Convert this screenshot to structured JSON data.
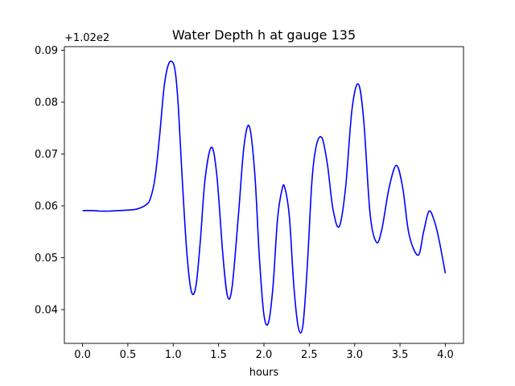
{
  "chart_data": {
    "type": "line",
    "title": "Water Depth h at gauge 135",
    "xlabel": "hours",
    "ylabel": "",
    "y_offset_label": "+1.02e2",
    "y_offset": 102,
    "xlim": [
      -0.2,
      4.2
    ],
    "ylim": [
      0.0335,
      0.0907
    ],
    "x_ticks": [
      0.0,
      0.5,
      1.0,
      1.5,
      2.0,
      2.5,
      3.0,
      3.5,
      4.0
    ],
    "x_tick_labels": [
      "0.0",
      "0.5",
      "1.0",
      "1.5",
      "2.0",
      "2.5",
      "3.0",
      "3.5",
      "4.0"
    ],
    "y_ticks": [
      0.04,
      0.05,
      0.06,
      0.07,
      0.08,
      0.09
    ],
    "y_tick_labels": [
      "0.04",
      "0.05",
      "0.06",
      "0.07",
      "0.08",
      "0.09"
    ],
    "grid": false,
    "series": [
      {
        "color": "#0000ff",
        "x": [
          0.0,
          0.1,
          0.2,
          0.3,
          0.4,
          0.5,
          0.6,
          0.7,
          0.75,
          0.8,
          0.85,
          0.9,
          0.95,
          1.0,
          1.03,
          1.06,
          1.1,
          1.15,
          1.2,
          1.25,
          1.3,
          1.35,
          1.42,
          1.48,
          1.55,
          1.6,
          1.65,
          1.72,
          1.78,
          1.84,
          1.9,
          1.95,
          2.0,
          2.05,
          2.1,
          2.15,
          2.2,
          2.23,
          2.28,
          2.33,
          2.38,
          2.43,
          2.48,
          2.53,
          2.58,
          2.64,
          2.7,
          2.76,
          2.83,
          2.9,
          2.97,
          3.04,
          3.1,
          3.17,
          3.24,
          3.3,
          3.38,
          3.46,
          3.53,
          3.6,
          3.7,
          3.76,
          3.82,
          3.88,
          3.93,
          4.0
        ],
        "y": [
          0.0591,
          0.0591,
          0.059,
          0.059,
          0.0591,
          0.0592,
          0.0594,
          0.0602,
          0.0615,
          0.0655,
          0.0735,
          0.083,
          0.0874,
          0.0875,
          0.0848,
          0.078,
          0.065,
          0.051,
          0.0435,
          0.0445,
          0.0535,
          0.065,
          0.0713,
          0.066,
          0.05,
          0.0425,
          0.0445,
          0.0585,
          0.0715,
          0.0753,
          0.066,
          0.05,
          0.039,
          0.0375,
          0.0445,
          0.0575,
          0.0632,
          0.0635,
          0.058,
          0.0445,
          0.0365,
          0.037,
          0.049,
          0.065,
          0.0718,
          0.0731,
          0.068,
          0.0595,
          0.056,
          0.0635,
          0.0785,
          0.0835,
          0.0765,
          0.0585,
          0.053,
          0.0555,
          0.0635,
          0.0678,
          0.0635,
          0.0545,
          0.0505,
          0.055,
          0.059,
          0.057,
          0.0535,
          0.047
        ]
      }
    ]
  }
}
